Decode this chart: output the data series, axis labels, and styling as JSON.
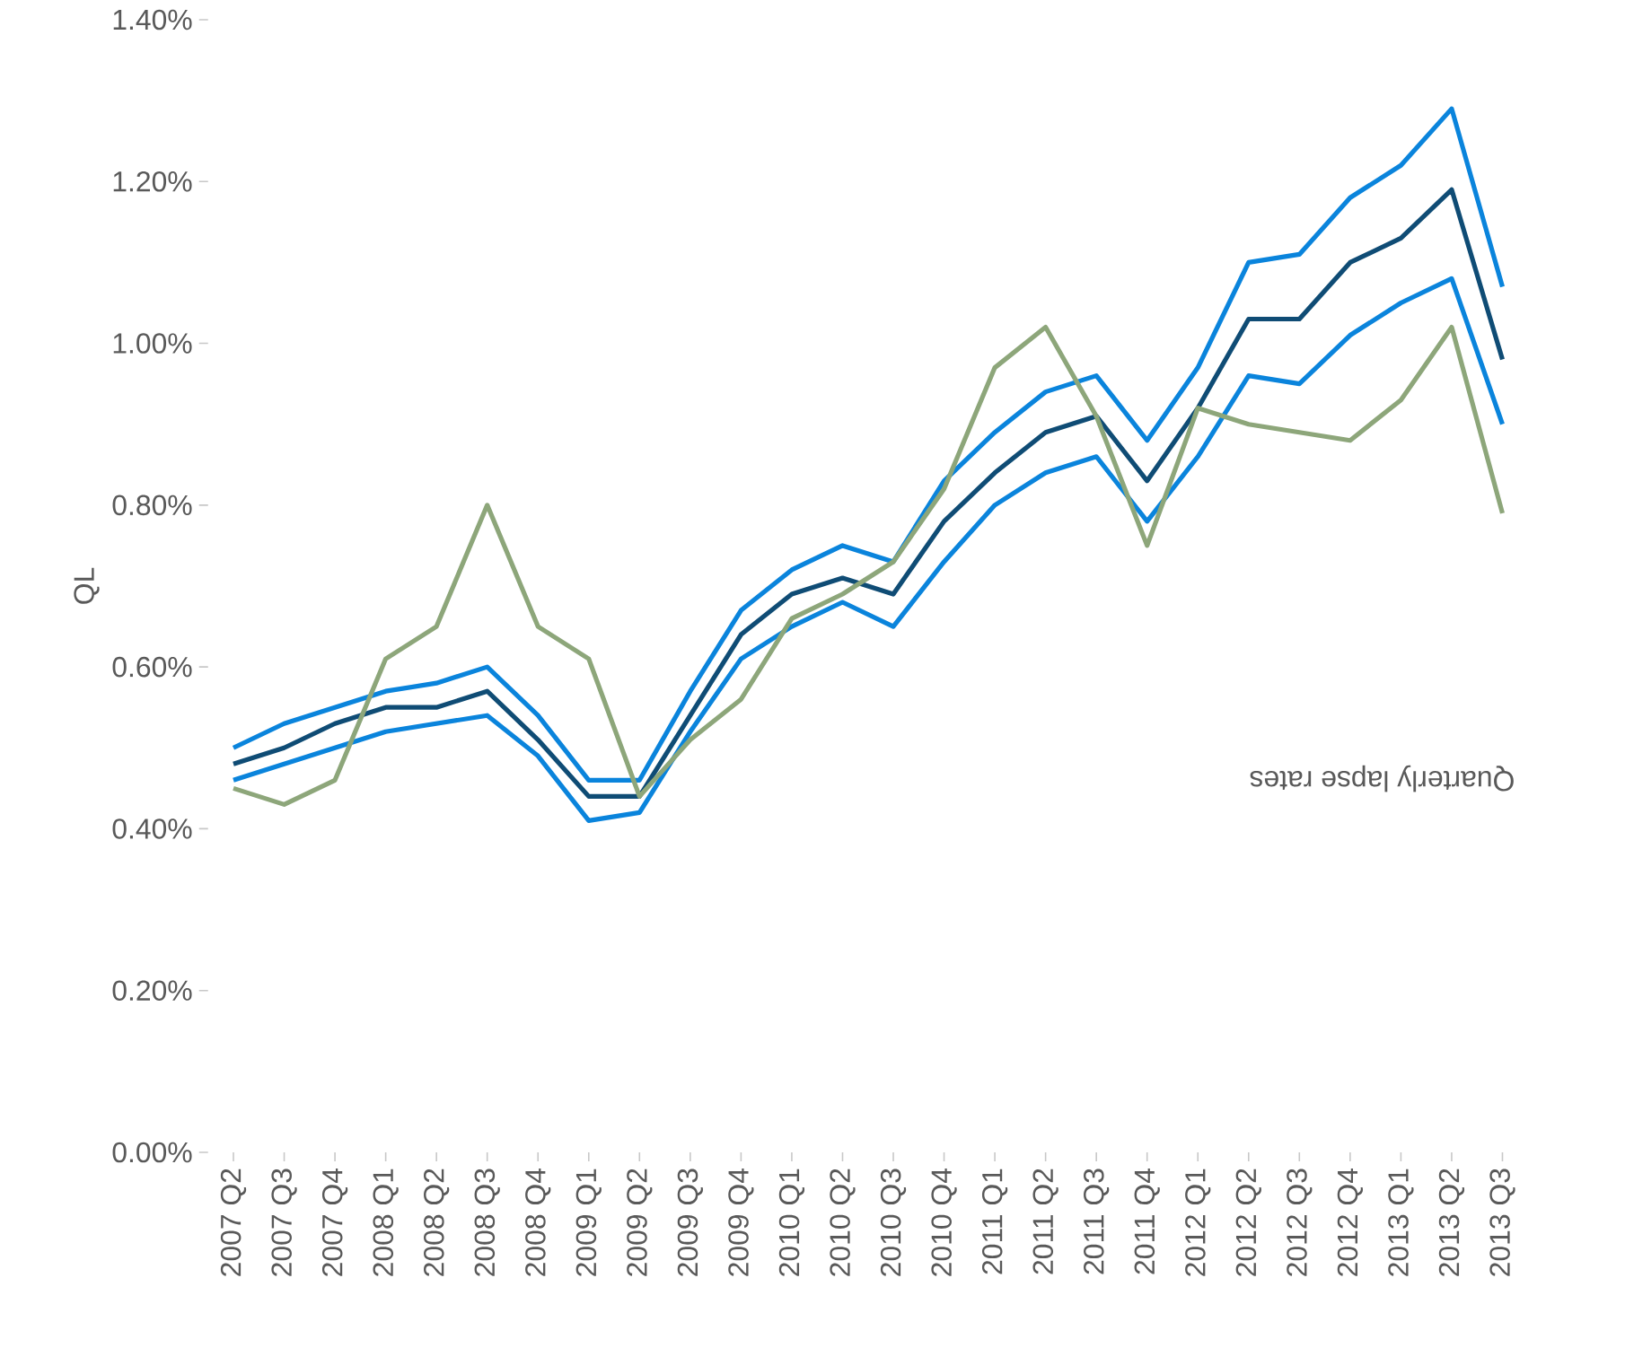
{
  "chart_data": {
    "type": "line",
    "ylabel": "QL",
    "annotations": [
      "Quarterly lapse rates"
    ],
    "categories": [
      "2007 Q2",
      "2007 Q3",
      "2007 Q4",
      "2008 Q1",
      "2008 Q2",
      "2008 Q3",
      "2008 Q4",
      "2009 Q1",
      "2009 Q2",
      "2009 Q3",
      "2009 Q4",
      "2010 Q1",
      "2010 Q2",
      "2010 Q3",
      "2010 Q4",
      "2011 Q1",
      "2011 Q2",
      "2011 Q3",
      "2011 Q4",
      "2012 Q1",
      "2012 Q2",
      "2012 Q3",
      "2012 Q4",
      "2013 Q1",
      "2013 Q2",
      "2013 Q3"
    ],
    "series": [
      {
        "color": "#0a84dc",
        "values": [
          0.5,
          0.53,
          0.55,
          0.57,
          0.58,
          0.6,
          0.54,
          0.46,
          0.46,
          0.57,
          0.67,
          0.72,
          0.75,
          0.73,
          0.83,
          0.89,
          0.94,
          0.96,
          0.88,
          0.97,
          1.1,
          1.11,
          1.18,
          1.22,
          1.29,
          1.07
        ]
      },
      {
        "color": "#0f4c75",
        "values": [
          0.48,
          0.5,
          0.53,
          0.55,
          0.55,
          0.57,
          0.51,
          0.44,
          0.44,
          0.54,
          0.64,
          0.69,
          0.71,
          0.69,
          0.78,
          0.84,
          0.89,
          0.91,
          0.83,
          0.92,
          1.03,
          1.03,
          1.1,
          1.13,
          1.19,
          0.98
        ]
      },
      {
        "color": "#0a84dc",
        "values": [
          0.46,
          0.48,
          0.5,
          0.52,
          0.53,
          0.54,
          0.49,
          0.41,
          0.42,
          0.52,
          0.61,
          0.65,
          0.68,
          0.65,
          0.73,
          0.8,
          0.84,
          0.86,
          0.78,
          0.86,
          0.96,
          0.95,
          1.01,
          1.05,
          1.08,
          0.9
        ]
      },
      {
        "color": "#8da67a",
        "values": [
          0.45,
          0.43,
          0.46,
          0.61,
          0.65,
          0.8,
          0.65,
          0.61,
          0.44,
          0.51,
          0.56,
          0.66,
          0.69,
          0.73,
          0.82,
          0.97,
          1.02,
          0.91,
          0.75,
          0.92,
          0.9,
          0.89,
          0.88,
          0.93,
          1.02,
          0.79
        ]
      }
    ],
    "ylim": [
      0,
      1.4
    ],
    "yticks": [
      {
        "value": 0,
        "label": "0.00%"
      },
      {
        "value": 0.2,
        "label": "0.20%"
      },
      {
        "value": 0.4,
        "label": "0.40%"
      },
      {
        "value": 0.6,
        "label": "0.60%"
      },
      {
        "value": 0.8,
        "label": "0.80%"
      },
      {
        "value": 1.0,
        "label": "1.00%"
      },
      {
        "value": 1.2,
        "label": "1.20%"
      },
      {
        "value": 1.4,
        "label": "1.40%"
      }
    ]
  }
}
